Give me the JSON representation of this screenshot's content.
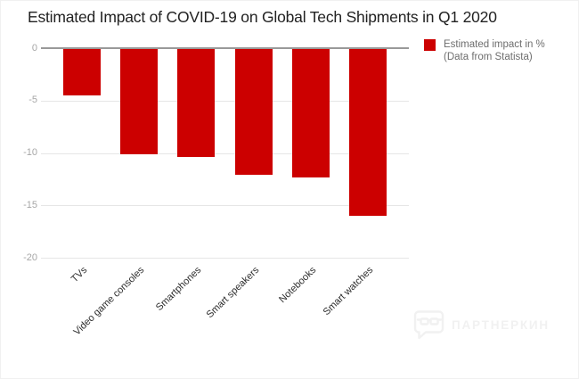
{
  "title": "Estimated Impact of COVID-19 on Global Tech Shipments in Q1 2020",
  "legend": {
    "line1": "Estimated impact in %",
    "line2": "(Data from Statista)",
    "swatch_color": "#cc0000"
  },
  "watermark": {
    "icon": "speech-bubble-glasses-icon",
    "text": "ПАРТНЕРКИН"
  },
  "chart_data": {
    "type": "bar",
    "orientation": "vertical",
    "title": "Estimated Impact of COVID-19 on Global Tech Shipments in Q1 2020",
    "categories": [
      "TVs",
      "Video game consoles",
      "Smartphones",
      "Smart speakers",
      "Notebooks",
      "Smart watches"
    ],
    "series": [
      {
        "name": "Estimated impact in %",
        "values": [
          -4.5,
          -10.1,
          -10.4,
          -12.1,
          -12.3,
          -16.0
        ]
      }
    ],
    "xlabel": "",
    "ylabel": "",
    "ylim": [
      -20,
      0
    ],
    "yticks": [
      0,
      -5,
      -10,
      -15,
      -20
    ],
    "grid": true,
    "legend_position": "top-right",
    "bar_color": "#cc0000",
    "source_note": "(Data from Statista)"
  },
  "colors": {
    "background": "#ffffff",
    "bar": "#cc0000",
    "zero_line": "#999999",
    "gridline": "#e6e6e6",
    "y_tick_text": "#a6a6a6",
    "x_tick_text": "#2b2b2b",
    "legend_text": "#6e6e6e",
    "title_text": "#222222",
    "watermark": "#f1f1f1"
  }
}
